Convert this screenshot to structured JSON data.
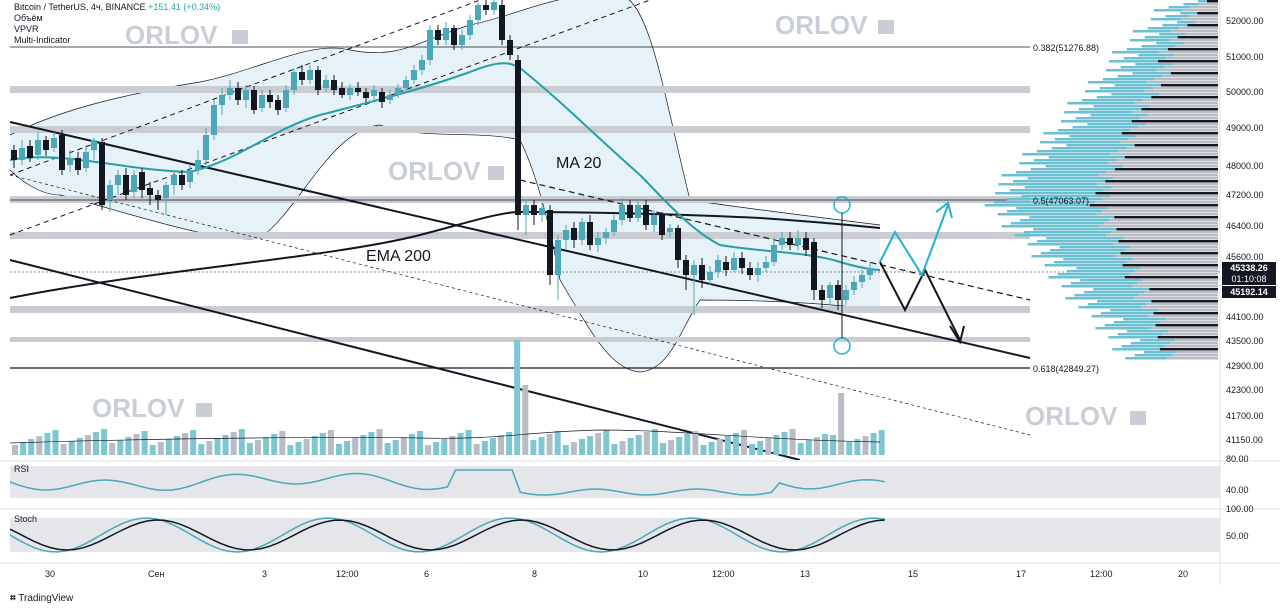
{
  "header": {
    "symbol": "Bitcoin / TetherUS, 4ч, BINANCE",
    "change": "+151.41 (+0.34%)",
    "indicators": [
      "Объём",
      "VPVR",
      "Multi-Indicator"
    ]
  },
  "panels": {
    "rsi": "RSI",
    "stoch": "Stoch"
  },
  "annotations": {
    "ma20": "MA 20",
    "ema200": "EMA 200"
  },
  "watermark": "ORLOV",
  "fib_labels": {
    "f0382": "0.382(51276.88)",
    "f05": "0.5(47063.07)",
    "f0618": "0.618(42849.27)"
  },
  "price_axis": [
    {
      "label": "52000.00",
      "price": 52000
    },
    {
      "label": "51000.00",
      "price": 51000
    },
    {
      "label": "50000.00",
      "price": 50000
    },
    {
      "label": "49000.00",
      "price": 49000
    },
    {
      "label": "48000.00",
      "price": 48000
    },
    {
      "label": "47200.00",
      "price": 47200
    },
    {
      "label": "46400.00",
      "price": 46400
    },
    {
      "label": "45600.00",
      "price": 45600
    },
    {
      "label": "44100.00",
      "price": 44100
    },
    {
      "label": "43500.00",
      "price": 43500
    },
    {
      "label": "42900.00",
      "price": 42900
    },
    {
      "label": "42300.00",
      "price": 42300
    },
    {
      "label": "41700.00",
      "price": 41700
    },
    {
      "label": "41150.00",
      "price": 41150
    }
  ],
  "price_tags": {
    "current_price": "45338.26",
    "countdown": "01:10:08",
    "last_price": "45192.14"
  },
  "rsi_axis": [
    "80.00",
    "40.00"
  ],
  "stoch_axis": [
    "100.00",
    "50.00"
  ],
  "time_axis": [
    "30",
    "Сен",
    "3",
    "12:00",
    "6",
    "8",
    "10",
    "12:00",
    "13",
    "15",
    "17",
    "12:00",
    "20"
  ],
  "branding": "TradingView",
  "colors": {
    "bull": "#4aa8b8",
    "bear": "#131722",
    "ma": "#26a0a8",
    "cyan_arrow": "#1fb3d1",
    "band_fill": "#e7f3f8",
    "zone": "#c9ccd1"
  }
}
